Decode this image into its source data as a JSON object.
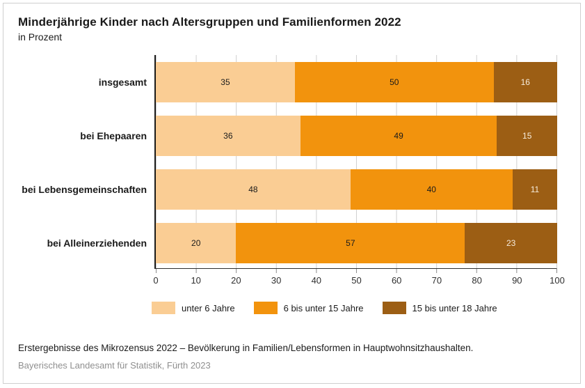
{
  "title": "Minderjährige Kinder nach Altersgruppen und Familienformen 2022",
  "subtitle": "in Prozent",
  "chart_data": {
    "type": "bar",
    "orientation": "horizontal",
    "stacked": true,
    "title": "Minderjährige Kinder nach Altersgruppen und Familienformen 2022",
    "subtitle": "in Prozent",
    "unit": "Prozent",
    "categories": [
      "insgesamt",
      "bei Ehepaaren",
      "bei Lebensgemeinschaften",
      "bei Alleinerziehenden"
    ],
    "series": [
      {
        "name": "unter 6 Jahre",
        "color": "#FACD94",
        "value_color": "#1a1a1a",
        "values": [
          35,
          36,
          48,
          20
        ]
      },
      {
        "name": "6 bis unter 15 Jahre",
        "color": "#F2930D",
        "value_color": "#1a1a1a",
        "values": [
          50,
          49,
          40,
          57
        ]
      },
      {
        "name": "15 bis unter 18 Jahre",
        "color": "#9C5E14",
        "value_color": "#F7ECDC",
        "values": [
          16,
          15,
          11,
          23
        ]
      }
    ],
    "xlim": [
      0,
      100
    ],
    "x_ticks": [
      0,
      10,
      20,
      30,
      40,
      50,
      60,
      70,
      80,
      90,
      100
    ],
    "grid": "vertical",
    "legend_position": "bottom"
  },
  "footer": {
    "source": "Erstergebnisse des Mikrozensus 2022 – Bevölkerung in Familien/Lebensformen in Hauptwohnsitzhaushalten.",
    "publisher": "Bayerisches Landesamt für Statistik, Fürth 2023"
  },
  "colors": {
    "axis": "#1a1a1a",
    "gridline": "#cfcfcf",
    "border": "#cfcfcf"
  }
}
